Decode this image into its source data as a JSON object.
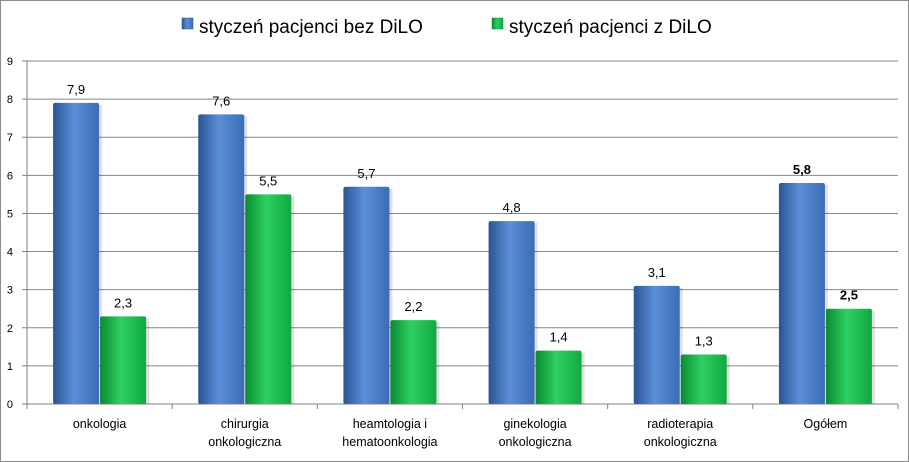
{
  "chart_data": {
    "type": "bar",
    "categories": [
      [
        "onkologia"
      ],
      [
        "chirurgia",
        "onkologiczna"
      ],
      [
        "heamtologia i",
        "hematoonkologia"
      ],
      [
        "ginekologia",
        "onkologiczna"
      ],
      [
        "radioterapia",
        "onkologiczna"
      ],
      [
        "Ogółem"
      ]
    ],
    "series": [
      {
        "name": "styczeń pacjenci bez DiLO",
        "values": [
          7.9,
          7.6,
          5.7,
          4.8,
          3.1,
          5.8
        ],
        "labels": [
          "7,9",
          "7,6",
          "5,7",
          "4,8",
          "3,1",
          "5,8"
        ],
        "bold_labels": [
          false,
          false,
          false,
          false,
          false,
          true
        ],
        "color": "#4a7ec9"
      },
      {
        "name": "styczeń pacjenci z DiLO",
        "values": [
          2.3,
          5.5,
          2.2,
          1.4,
          1.3,
          2.5
        ],
        "labels": [
          "2,3",
          "5,5",
          "2,2",
          "1,4",
          "1,3",
          "2,5"
        ],
        "bold_labels": [
          false,
          false,
          false,
          false,
          false,
          true
        ],
        "color": "#19b84a"
      }
    ],
    "ylim": [
      0,
      9
    ],
    "yticks": [
      "0",
      "1",
      "2",
      "3",
      "4",
      "5",
      "6",
      "7",
      "8",
      "9"
    ],
    "grid": true,
    "legend_position": "top"
  }
}
